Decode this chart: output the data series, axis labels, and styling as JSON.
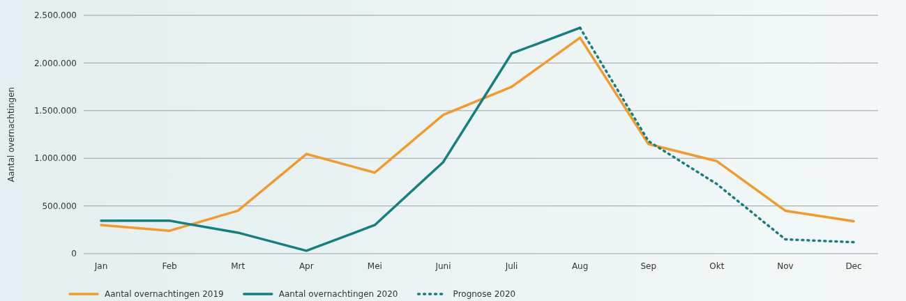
{
  "chart_data": {
    "type": "line",
    "ylabel": "Aantal overnachtingen",
    "categories": [
      "Jan",
      "Feb",
      "Mrt",
      "Apr",
      "Mei",
      "Juni",
      "Juli",
      "Aug",
      "Sep",
      "Okt",
      "Nov",
      "Dec"
    ],
    "series": [
      {
        "name": "Aantal overnachtingen 2019",
        "color": "#f39a2b",
        "values": [
          300000,
          240000,
          450000,
          1045000,
          850000,
          1455000,
          1750000,
          2265000,
          1150000,
          970000,
          450000,
          340000
        ]
      },
      {
        "name": "Aantal overnachtingen 2020",
        "color": "#137f7f",
        "values": [
          345000,
          345000,
          220000,
          30000,
          300000,
          960000,
          2100000,
          2370000,
          null,
          null,
          null,
          null
        ]
      },
      {
        "name": "Prognose 2020",
        "color": "#137f7f",
        "line_style": "dotted",
        "values": [
          null,
          null,
          null,
          null,
          null,
          null,
          null,
          2370000,
          1180000,
          730000,
          150000,
          120000
        ]
      }
    ],
    "ylim": [
      0,
      2500000
    ],
    "yticks": [
      0,
      {
        "value": 500000,
        "label": "500.000"
      },
      {
        "value": 1000000,
        "label": "1.000.000"
      },
      {
        "value": 1500000,
        "label": "1.500.000"
      },
      {
        "value": 2000000,
        "label": "2.000.000"
      },
      {
        "value": 2500000,
        "label": "2.500.000"
      }
    ],
    "grid": "y",
    "legend": "bottom",
    "marker": "none",
    "line_style": "solid"
  }
}
